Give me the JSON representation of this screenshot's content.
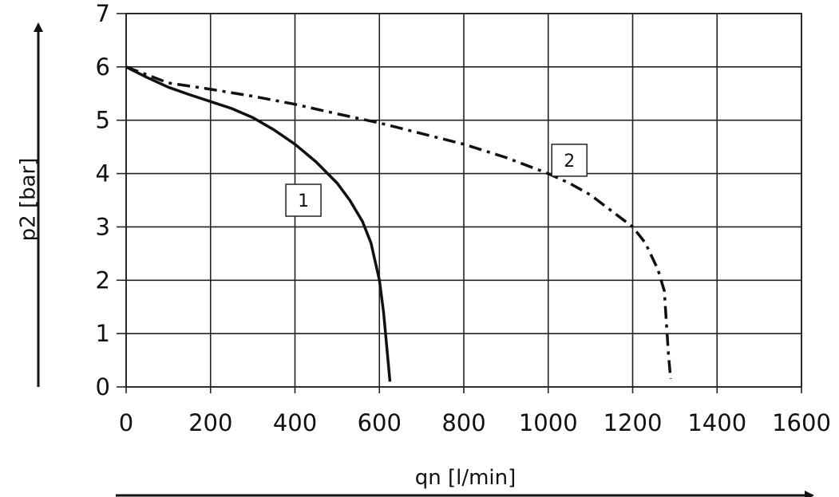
{
  "chart_data": {
    "type": "line",
    "title": "",
    "xlabel": "qn [l/min]",
    "ylabel": "p2 [bar]",
    "xlim": [
      0,
      1600
    ],
    "ylim": [
      0,
      7
    ],
    "x_ticks": [
      "0",
      "200",
      "400",
      "600",
      "800",
      "1000",
      "1200",
      "1400",
      "1600"
    ],
    "y_ticks": [
      "0",
      "1",
      "2",
      "3",
      "4",
      "5",
      "6",
      "7"
    ],
    "grid": true,
    "series": [
      {
        "label": "1",
        "line_style": "solid",
        "color": "#111111",
        "points": [
          [
            0,
            6.0
          ],
          [
            50,
            5.8
          ],
          [
            100,
            5.62
          ],
          [
            150,
            5.48
          ],
          [
            200,
            5.35
          ],
          [
            250,
            5.22
          ],
          [
            300,
            5.05
          ],
          [
            350,
            4.82
          ],
          [
            400,
            4.55
          ],
          [
            450,
            4.22
          ],
          [
            500,
            3.82
          ],
          [
            530,
            3.5
          ],
          [
            560,
            3.1
          ],
          [
            580,
            2.7
          ],
          [
            600,
            2.0
          ],
          [
            610,
            1.4
          ],
          [
            618,
            0.7
          ],
          [
            625,
            0.1
          ]
        ]
      },
      {
        "label": "2",
        "line_style": "dashdot",
        "color": "#111111",
        "points": [
          [
            0,
            6.0
          ],
          [
            100,
            5.7
          ],
          [
            200,
            5.58
          ],
          [
            300,
            5.45
          ],
          [
            400,
            5.3
          ],
          [
            500,
            5.12
          ],
          [
            600,
            4.95
          ],
          [
            700,
            4.75
          ],
          [
            800,
            4.55
          ],
          [
            900,
            4.3
          ],
          [
            1000,
            4.0
          ],
          [
            1050,
            3.82
          ],
          [
            1100,
            3.6
          ],
          [
            1150,
            3.3
          ],
          [
            1200,
            3.0
          ],
          [
            1230,
            2.7
          ],
          [
            1260,
            2.2
          ],
          [
            1275,
            1.8
          ],
          [
            1280,
            1.2
          ],
          [
            1285,
            0.6
          ],
          [
            1290,
            0.15
          ]
        ]
      }
    ]
  }
}
